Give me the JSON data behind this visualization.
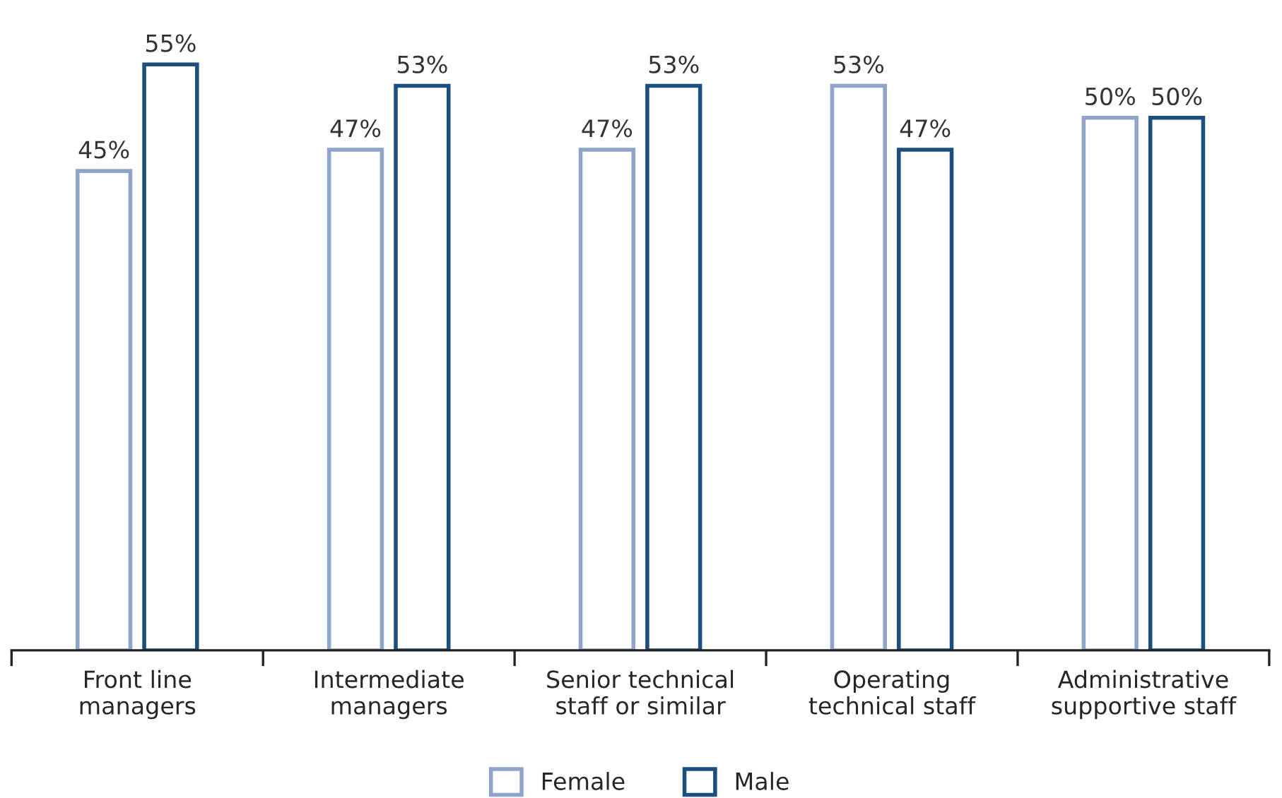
{
  "chart_data": {
    "type": "bar",
    "categories": [
      "Front line\nmanagers",
      "Intermediate\nmanagers",
      "Senior technical\nstaff or similar",
      "Operating\ntechnical staff",
      "Administrative\nsupportive staff"
    ],
    "series": [
      {
        "name": "Female",
        "color": "#8fa3cb",
        "values": [
          45,
          47,
          47,
          53,
          50
        ],
        "value_labels": [
          "45%",
          "47%",
          "47%",
          "53%",
          "50%"
        ]
      },
      {
        "name": "Male",
        "color": "#1c4f80",
        "values": [
          55,
          53,
          53,
          47,
          50
        ],
        "value_labels": [
          "55%",
          "53%",
          "53%",
          "47%",
          "50%"
        ]
      }
    ],
    "tick_labels": "x",
    "legend": "bottom",
    "grid": false
  }
}
